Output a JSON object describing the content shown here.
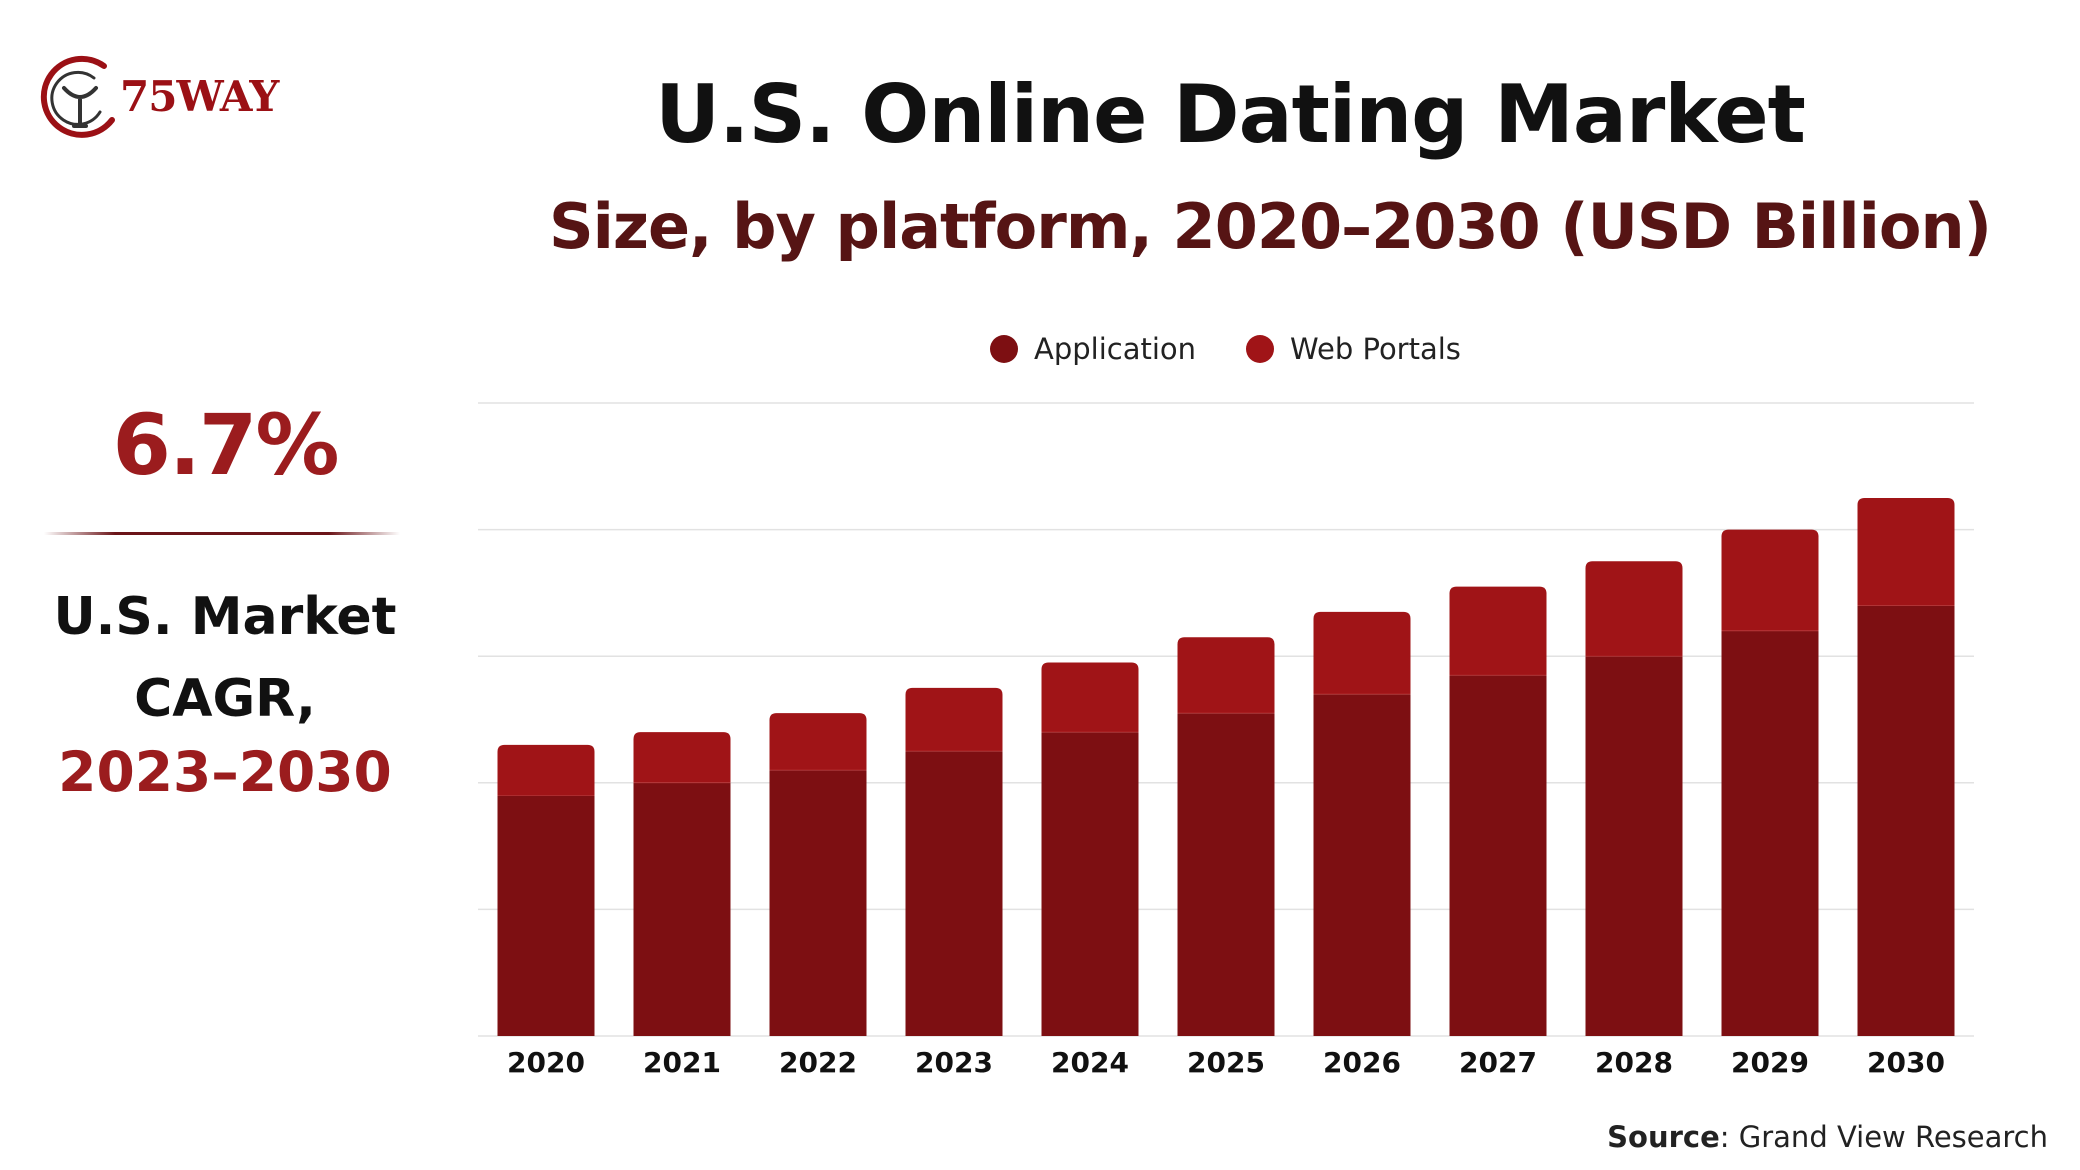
{
  "logo": {
    "brand": "75WAY"
  },
  "header": {
    "title": "U.S. Online Dating Market",
    "subtitle": "Size, by platform, 2020–2030 (USD Billion)"
  },
  "cagr": {
    "value": "6.7%",
    "label_line1": "U.S. Market",
    "label_line2": "CAGR,",
    "years": "2023–2030"
  },
  "source": {
    "label": "Source",
    "text": ": Grand View Research"
  },
  "colors": {
    "application": "#7d0f12",
    "web_portals": "#a01417",
    "accent": "#9b1c1e"
  },
  "chart_data": {
    "type": "bar",
    "stacked": true,
    "categories": [
      "2020",
      "2021",
      "2022",
      "2023",
      "2024",
      "2025",
      "2026",
      "2027",
      "2028",
      "2029",
      "2030"
    ],
    "series": [
      {
        "name": "Application",
        "values": [
          1.9,
          2.0,
          2.1,
          2.25,
          2.4,
          2.55,
          2.7,
          2.85,
          3.0,
          3.2,
          3.4
        ]
      },
      {
        "name": "Web Portals",
        "values": [
          0.4,
          0.4,
          0.45,
          0.5,
          0.55,
          0.6,
          0.65,
          0.7,
          0.75,
          0.8,
          0.85
        ]
      }
    ],
    "ylim": [
      0,
      5
    ],
    "grid": true,
    "legend": "top-center",
    "title": "",
    "xlabel": "",
    "ylabel": ""
  }
}
